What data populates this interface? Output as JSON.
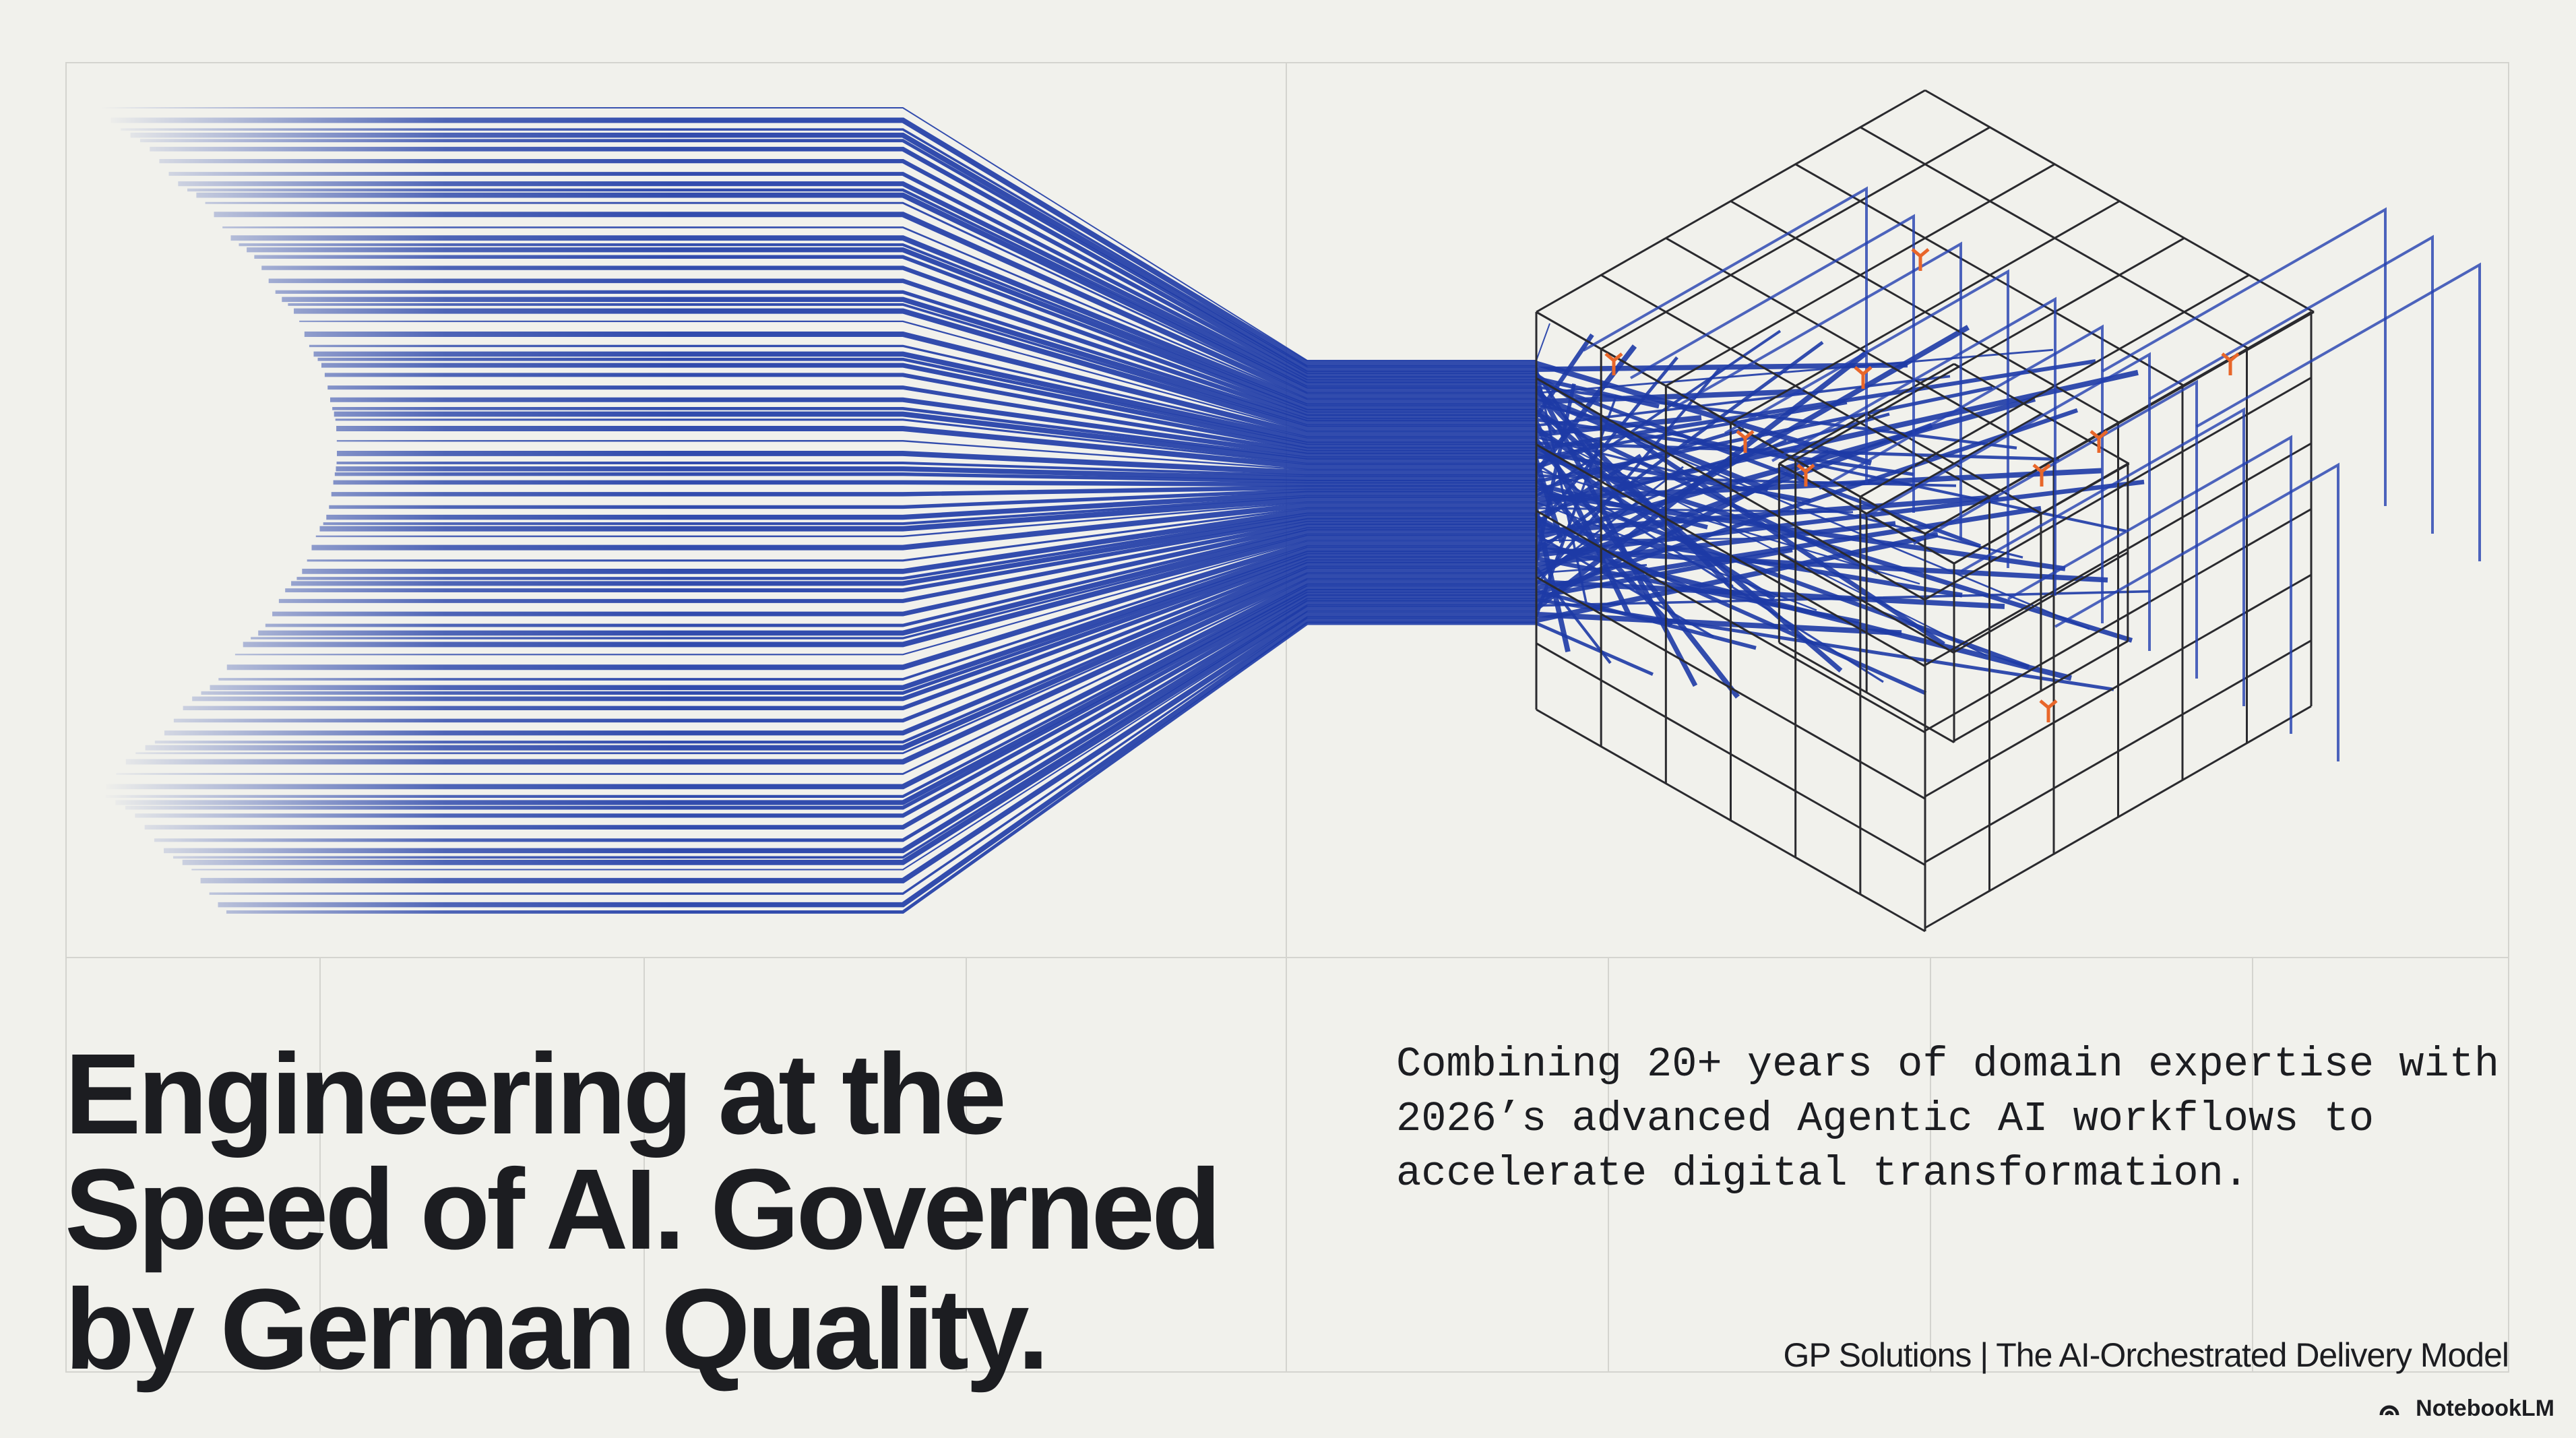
{
  "headline": {
    "lines": [
      "Engineering at the",
      "Speed of AI. Governed",
      "by German Quality."
    ]
  },
  "description": {
    "lines": [
      "Combining 20+ years of domain expertise with",
      "2026’s advanced Agentic AI workflows to",
      "accelerate digital transformation."
    ]
  },
  "footer": "GP Solutions | The AI-Orchestrated Delivery Model",
  "watermark": "NotebookLM"
}
